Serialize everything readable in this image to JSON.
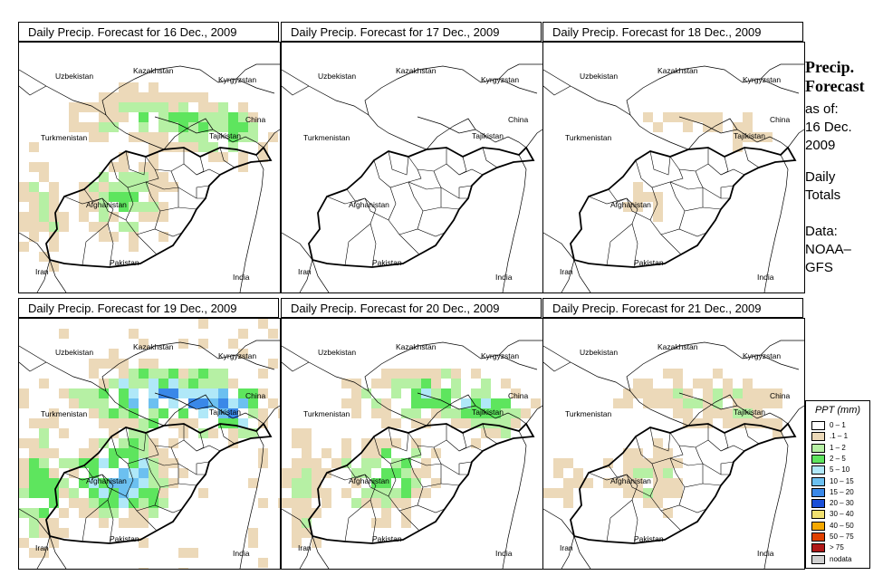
{
  "panels": [
    {
      "title": "Daily Precip. Forecast for  16 Dec., 2009",
      "intensity": 0.55
    },
    {
      "title": "Daily Precip. Forecast for  17 Dec., 2009",
      "intensity": 0.02
    },
    {
      "title": "Daily Precip. Forecast for  18 Dec., 2009",
      "intensity": 0.2
    },
    {
      "title": "Daily Precip. Forecast for  19 Dec., 2009",
      "intensity": 0.95
    },
    {
      "title": "Daily Precip. Forecast for  20 Dec., 2009",
      "intensity": 0.6
    },
    {
      "title": "Daily Precip. Forecast for  21 Dec., 2009",
      "intensity": 0.35
    }
  ],
  "map_labels": {
    "uzbekistan": "Uzbekistan",
    "kazakhstan": "Kazakhstan",
    "kyrgyzstan": "Kyrgyzstan",
    "china": "China",
    "turkmenistan": "Turkmenistan",
    "tajikistan": "Tajikistan",
    "afghanistan": "Afghanistan",
    "iran": "Iran",
    "pakistan": "Pakistan",
    "india": "India"
  },
  "sidebar": {
    "title_line1": "Precip.",
    "title_line2": "Forecast",
    "asof_line1": "as of:",
    "asof_line2": "16 Dec.",
    "asof_line3": "2009",
    "daily_line1": "Daily",
    "daily_line2": "Totals",
    "data_line1": "Data:",
    "data_line2": "NOAA–",
    "data_line3": "GFS"
  },
  "legend": {
    "title": "PPT (mm)",
    "items": [
      {
        "label": "0 – 1",
        "color": "#ffffff"
      },
      {
        "label": ".1 – 1",
        "color": "#ecd9b9"
      },
      {
        "label": "1 – 2",
        "color": "#b6f0a4"
      },
      {
        "label": "2 – 5",
        "color": "#5ee55e"
      },
      {
        "label": "5 – 10",
        "color": "#b0e8f8"
      },
      {
        "label": "10 – 15",
        "color": "#6cc0f0"
      },
      {
        "label": "15 – 20",
        "color": "#3a88e8"
      },
      {
        "label": "20 – 30",
        "color": "#1a4fd8"
      },
      {
        "label": "30 – 40",
        "color": "#f0e070"
      },
      {
        "label": "40 – 50",
        "color": "#f5a800"
      },
      {
        "label": "50 – 75",
        "color": "#e04000"
      },
      {
        "label": "> 75",
        "color": "#b01818"
      },
      {
        "label": "nodata",
        "color": "#d0d0d0"
      }
    ]
  }
}
